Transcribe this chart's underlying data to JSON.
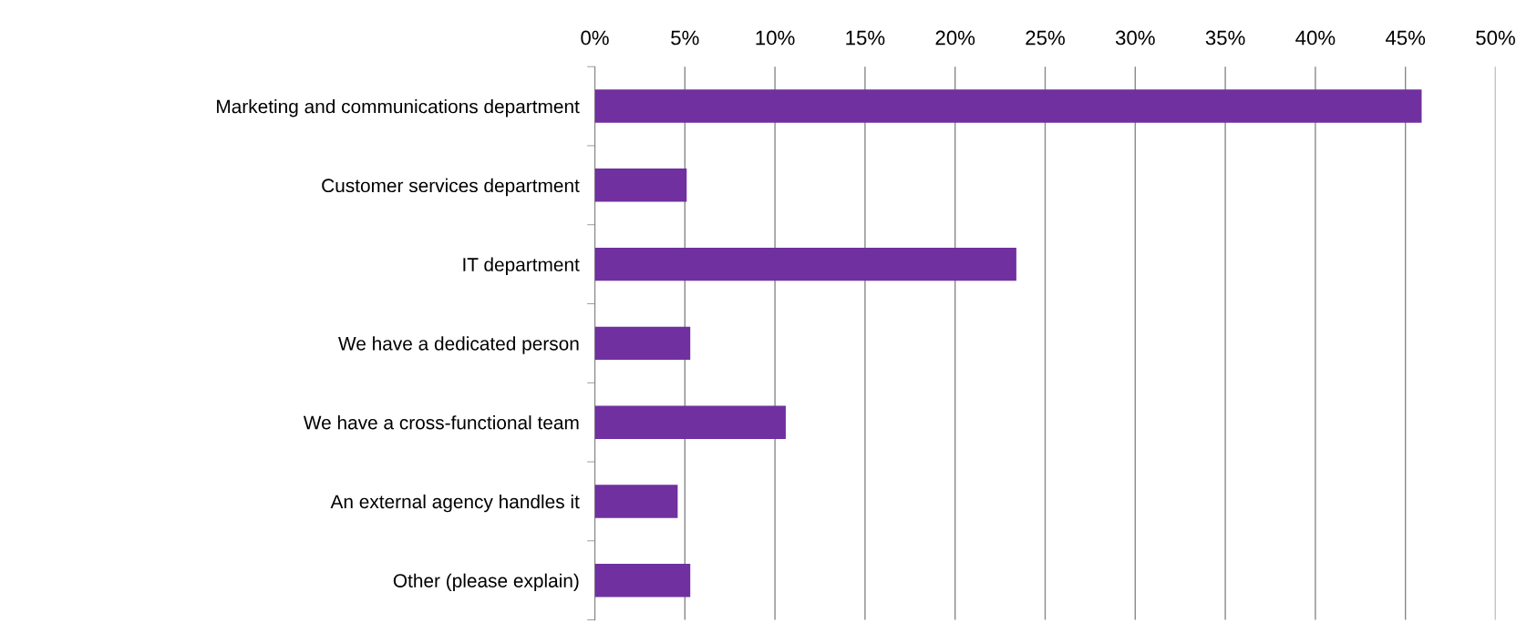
{
  "chart_data": {
    "type": "bar",
    "orientation": "horizontal",
    "categories": [
      "Marketing and communications department",
      "Customer services department",
      "IT department",
      "We have a dedicated person",
      "We have a cross-functional team",
      "An external agency handles it",
      "Other (please explain)"
    ],
    "values": [
      45.9,
      5.1,
      23.4,
      5.3,
      10.6,
      4.6,
      5.3
    ],
    "color": "#7030a0",
    "xlim": [
      0,
      50
    ],
    "xticks": [
      {
        "value": 0,
        "label": "0%"
      },
      {
        "value": 5,
        "label": "5%"
      },
      {
        "value": 10,
        "label": "10%"
      },
      {
        "value": 15,
        "label": "15%"
      },
      {
        "value": 20,
        "label": "20%"
      },
      {
        "value": 25,
        "label": "25%"
      },
      {
        "value": 30,
        "label": "30%"
      },
      {
        "value": 35,
        "label": "35%"
      },
      {
        "value": 40,
        "label": "40%"
      },
      {
        "value": 45,
        "label": "45%"
      },
      {
        "value": 50,
        "label": "50%"
      }
    ],
    "grid": "x",
    "legend": false
  }
}
